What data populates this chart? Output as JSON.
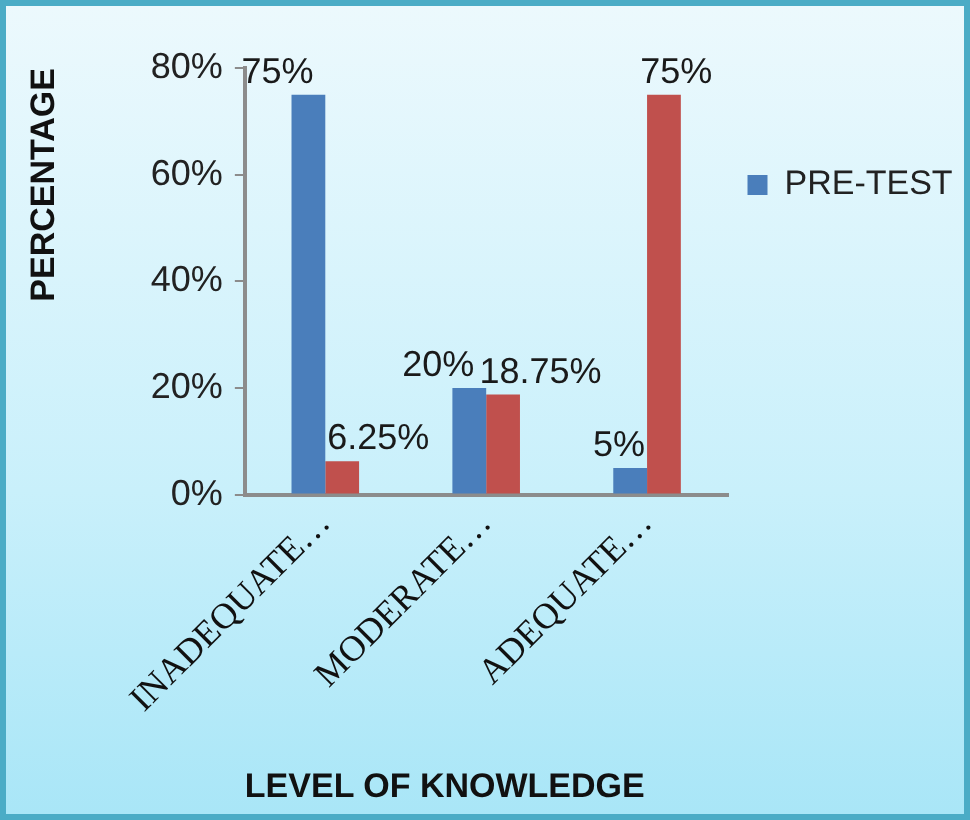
{
  "chart_data": {
    "type": "bar",
    "ylabel": "PERCENTAGE",
    "xlabel": "LEVEL OF KNOWLEDGE",
    "categories": [
      "INADEQUATE…",
      "MODERATE…",
      "ADEQUATE…"
    ],
    "series": [
      {
        "name": "PRE-TEST",
        "color": "#4a7ebb",
        "values": [
          75,
          20,
          5
        ],
        "value_labels": [
          "75%",
          "20%",
          "5%"
        ]
      },
      {
        "color": "#c0504d",
        "values": [
          6.25,
          18.75,
          75
        ],
        "value_labels": [
          "6.25%",
          "18.75%",
          "75%"
        ]
      }
    ],
    "ylim": [
      0,
      80
    ],
    "yticks": [
      {
        "value": 0,
        "label": "0%"
      },
      {
        "value": 20,
        "label": "20%"
      },
      {
        "value": 40,
        "label": "40%"
      },
      {
        "value": 60,
        "label": "60%"
      },
      {
        "value": 80,
        "label": "80%"
      }
    ],
    "legend": "right"
  }
}
